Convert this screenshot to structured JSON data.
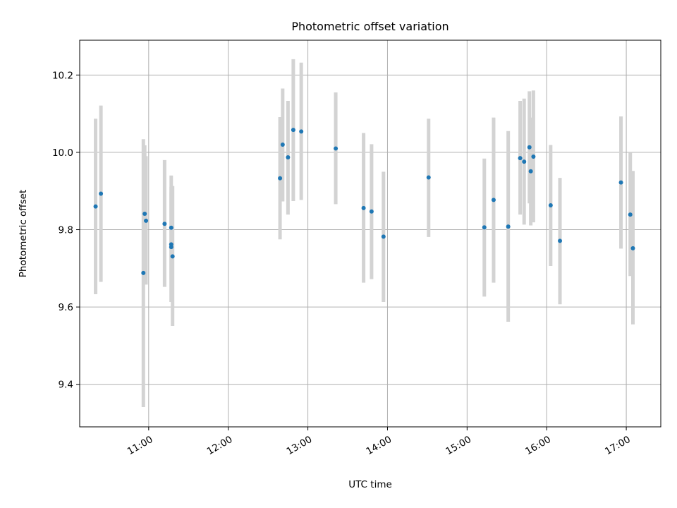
{
  "chart_data": {
    "type": "scatter",
    "title": "Photometric offset variation",
    "xlabel": "UTC time",
    "ylabel": "Photometric offset",
    "xlim": [
      "10:08",
      "17:26"
    ],
    "ylim": [
      9.29,
      10.29
    ],
    "xticks": [
      "11:00",
      "12:00",
      "13:00",
      "14:00",
      "15:00",
      "16:00",
      "17:00"
    ],
    "yticks": [
      9.4,
      9.6,
      9.8,
      10.0,
      10.2
    ],
    "grid": true,
    "colors": {
      "marker": "#1f77b4",
      "errorbar": "#d3d3d3",
      "grid": "#b0b0b0"
    },
    "points": [
      {
        "x": "10:20",
        "y": 9.86,
        "ylow": 9.633,
        "yhigh": 10.087
      },
      {
        "x": "10:24",
        "y": 9.893,
        "ylow": 9.665,
        "yhigh": 10.121
      },
      {
        "x": "10:56",
        "y": 9.688,
        "ylow": 9.341,
        "yhigh": 10.034
      },
      {
        "x": "10:57",
        "y": 9.841,
        "ylow": 9.66,
        "yhigh": 10.018
      },
      {
        "x": "10:58",
        "y": 9.823,
        "ylow": 9.658,
        "yhigh": 9.99
      },
      {
        "x": "11:12",
        "y": 9.815,
        "ylow": 9.652,
        "yhigh": 9.98
      },
      {
        "x": "11:17",
        "y": 9.805,
        "ylow": 9.67,
        "yhigh": 9.94
      },
      {
        "x": "11:17",
        "y": 9.762,
        "ylow": 9.613,
        "yhigh": 9.911
      },
      {
        "x": "11:17",
        "y": 9.755,
        "ylow": 9.613,
        "yhigh": 9.896
      },
      {
        "x": "11:18",
        "y": 9.731,
        "ylow": 9.551,
        "yhigh": 9.913
      },
      {
        "x": "12:39",
        "y": 9.933,
        "ylow": 9.775,
        "yhigh": 10.091
      },
      {
        "x": "12:41",
        "y": 10.02,
        "ylow": 9.873,
        "yhigh": 10.165
      },
      {
        "x": "12:45",
        "y": 9.987,
        "ylow": 9.839,
        "yhigh": 10.133
      },
      {
        "x": "12:49",
        "y": 10.058,
        "ylow": 9.874,
        "yhigh": 10.241
      },
      {
        "x": "12:55",
        "y": 10.054,
        "ylow": 9.877,
        "yhigh": 10.232
      },
      {
        "x": "13:21",
        "y": 10.01,
        "ylow": 9.866,
        "yhigh": 10.155
      },
      {
        "x": "13:42",
        "y": 9.856,
        "ylow": 9.663,
        "yhigh": 10.05
      },
      {
        "x": "13:48",
        "y": 9.847,
        "ylow": 9.672,
        "yhigh": 10.021
      },
      {
        "x": "13:57",
        "y": 9.782,
        "ylow": 9.613,
        "yhigh": 9.95
      },
      {
        "x": "14:31",
        "y": 9.935,
        "ylow": 9.781,
        "yhigh": 10.087
      },
      {
        "x": "15:13",
        "y": 9.806,
        "ylow": 9.627,
        "yhigh": 9.984
      },
      {
        "x": "15:20",
        "y": 9.877,
        "ylow": 9.663,
        "yhigh": 10.09
      },
      {
        "x": "15:31",
        "y": 9.808,
        "ylow": 9.562,
        "yhigh": 10.055
      },
      {
        "x": "15:40",
        "y": 9.985,
        "ylow": 9.839,
        "yhigh": 10.133
      },
      {
        "x": "15:43",
        "y": 9.976,
        "ylow": 9.813,
        "yhigh": 10.139
      },
      {
        "x": "15:47",
        "y": 10.013,
        "ylow": 9.868,
        "yhigh": 10.158
      },
      {
        "x": "15:48",
        "y": 9.951,
        "ylow": 9.811,
        "yhigh": 10.09
      },
      {
        "x": "15:50",
        "y": 9.989,
        "ylow": 9.819,
        "yhigh": 10.16
      },
      {
        "x": "16:03",
        "y": 9.863,
        "ylow": 9.706,
        "yhigh": 10.019
      },
      {
        "x": "16:10",
        "y": 9.771,
        "ylow": 9.607,
        "yhigh": 9.934
      },
      {
        "x": "16:56",
        "y": 9.922,
        "ylow": 9.751,
        "yhigh": 10.093
      },
      {
        "x": "17:03",
        "y": 9.839,
        "ylow": 9.68,
        "yhigh": 10.0
      },
      {
        "x": "17:05",
        "y": 9.752,
        "ylow": 9.555,
        "yhigh": 9.952
      }
    ]
  }
}
